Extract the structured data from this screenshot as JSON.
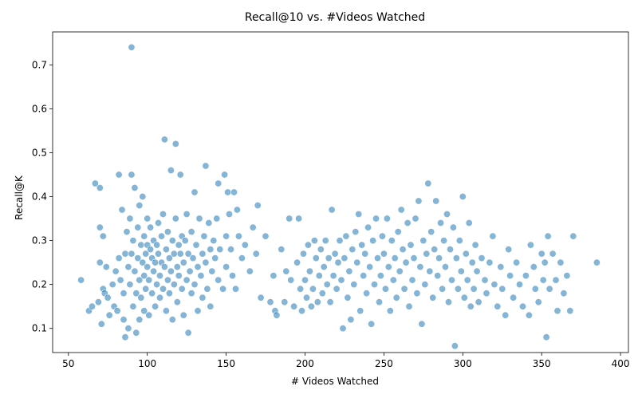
{
  "chart_data": {
    "type": "scatter",
    "title": "Recall@10 vs. #Videos Watched",
    "xlabel": "# Videos Watched",
    "ylabel": "Recall@K",
    "xlim": [
      40,
      405
    ],
    "ylim": [
      0.045,
      0.775
    ],
    "x_ticks": [
      50,
      100,
      150,
      200,
      250,
      300,
      350,
      400
    ],
    "y_ticks": [
      0.1,
      0.2,
      0.3,
      0.4,
      0.5,
      0.6,
      0.7
    ],
    "grid": false,
    "marker_color": "#1f77b4",
    "series": [
      {
        "points": [
          [
            58,
            0.21
          ],
          [
            63,
            0.14
          ],
          [
            65,
            0.15
          ],
          [
            67,
            0.43
          ],
          [
            69,
            0.16
          ],
          [
            70,
            0.33
          ],
          [
            70,
            0.42
          ],
          [
            70,
            0.25
          ],
          [
            71,
            0.11
          ],
          [
            72,
            0.19
          ],
          [
            72,
            0.31
          ],
          [
            73,
            0.18
          ],
          [
            74,
            0.24
          ],
          [
            75,
            0.17
          ],
          [
            76,
            0.13
          ],
          [
            78,
            0.2
          ],
          [
            79,
            0.15
          ],
          [
            80,
            0.23
          ],
          [
            81,
            0.14
          ],
          [
            82,
            0.26
          ],
          [
            82,
            0.45
          ],
          [
            83,
            0.21
          ],
          [
            84,
            0.37
          ],
          [
            85,
            0.18
          ],
          [
            85,
            0.12
          ],
          [
            86,
            0.27
          ],
          [
            86,
            0.08
          ],
          [
            87,
            0.32
          ],
          [
            88,
            0.24
          ],
          [
            88,
            0.1
          ],
          [
            89,
            0.35
          ],
          [
            89,
            0.2
          ],
          [
            90,
            0.45
          ],
          [
            90,
            0.74
          ],
          [
            90,
            0.27
          ],
          [
            91,
            0.15
          ],
          [
            91,
            0.3
          ],
          [
            92,
            0.42
          ],
          [
            92,
            0.23
          ],
          [
            93,
            0.09
          ],
          [
            93,
            0.18
          ],
          [
            94,
            0.33
          ],
          [
            94,
            0.26
          ],
          [
            95,
            0.38
          ],
          [
            95,
            0.21
          ],
          [
            95,
            0.12
          ],
          [
            96,
            0.29
          ],
          [
            96,
            0.17
          ],
          [
            97,
            0.25
          ],
          [
            97,
            0.4
          ],
          [
            98,
            0.22
          ],
          [
            98,
            0.31
          ],
          [
            98,
            0.14
          ],
          [
            99,
            0.27
          ],
          [
            99,
            0.19
          ],
          [
            100,
            0.24
          ],
          [
            100,
            0.35
          ],
          [
            100,
            0.29
          ],
          [
            101,
            0.13
          ],
          [
            101,
            0.21
          ],
          [
            102,
            0.28
          ],
          [
            102,
            0.33
          ],
          [
            103,
            0.26
          ],
          [
            103,
            0.18
          ],
          [
            104,
            0.3
          ],
          [
            104,
            0.23
          ],
          [
            105,
            0.25
          ],
          [
            105,
            0.15
          ],
          [
            106,
            0.29
          ],
          [
            106,
            0.2
          ],
          [
            107,
            0.27
          ],
          [
            107,
            0.34
          ],
          [
            108,
            0.22
          ],
          [
            108,
            0.17
          ],
          [
            109,
            0.31
          ],
          [
            109,
            0.25
          ],
          [
            110,
            0.19
          ],
          [
            110,
            0.36
          ],
          [
            111,
            0.24
          ],
          [
            111,
            0.53
          ],
          [
            112,
            0.28
          ],
          [
            112,
            0.14
          ],
          [
            113,
            0.21
          ],
          [
            113,
            0.32
          ],
          [
            114,
            0.26
          ],
          [
            114,
            0.18
          ],
          [
            115,
            0.46
          ],
          [
            115,
            0.23
          ],
          [
            116,
            0.3
          ],
          [
            116,
            0.12
          ],
          [
            117,
            0.27
          ],
          [
            117,
            0.2
          ],
          [
            118,
            0.52
          ],
          [
            118,
            0.35
          ],
          [
            119,
            0.24
          ],
          [
            119,
            0.16
          ],
          [
            120,
            0.29
          ],
          [
            120,
            0.22
          ],
          [
            121,
            0.45
          ],
          [
            121,
            0.27
          ],
          [
            122,
            0.19
          ],
          [
            122,
            0.31
          ],
          [
            123,
            0.25
          ],
          [
            123,
            0.13
          ],
          [
            124,
            0.3
          ],
          [
            125,
            0.21
          ],
          [
            125,
            0.36
          ],
          [
            126,
            0.09
          ],
          [
            126,
            0.27
          ],
          [
            127,
            0.23
          ],
          [
            128,
            0.32
          ],
          [
            128,
            0.18
          ],
          [
            129,
            0.26
          ],
          [
            130,
            0.41
          ],
          [
            130,
            0.2
          ],
          [
            131,
            0.29
          ],
          [
            132,
            0.24
          ],
          [
            132,
            0.14
          ],
          [
            133,
            0.35
          ],
          [
            134,
            0.22
          ],
          [
            135,
            0.27
          ],
          [
            135,
            0.17
          ],
          [
            136,
            0.31
          ],
          [
            137,
            0.47
          ],
          [
            137,
            0.25
          ],
          [
            138,
            0.19
          ],
          [
            139,
            0.34
          ],
          [
            140,
            0.28
          ],
          [
            140,
            0.15
          ],
          [
            141,
            0.23
          ],
          [
            142,
            0.3
          ],
          [
            143,
            0.26
          ],
          [
            144,
            0.35
          ],
          [
            145,
            0.43
          ],
          [
            145,
            0.21
          ],
          [
            146,
            0.28
          ],
          [
            148,
            0.19
          ],
          [
            149,
            0.45
          ],
          [
            150,
            0.31
          ],
          [
            150,
            0.24
          ],
          [
            151,
            0.41
          ],
          [
            152,
            0.36
          ],
          [
            153,
            0.28
          ],
          [
            154,
            0.22
          ],
          [
            155,
            0.41
          ],
          [
            156,
            0.19
          ],
          [
            157,
            0.37
          ],
          [
            158,
            0.31
          ],
          [
            160,
            0.26
          ],
          [
            162,
            0.29
          ],
          [
            165,
            0.23
          ],
          [
            167,
            0.33
          ],
          [
            169,
            0.27
          ],
          [
            170,
            0.38
          ],
          [
            172,
            0.17
          ],
          [
            175,
            0.31
          ],
          [
            178,
            0.16
          ],
          [
            180,
            0.22
          ],
          [
            181,
            0.14
          ],
          [
            182,
            0.13
          ],
          [
            185,
            0.28
          ],
          [
            187,
            0.16
          ],
          [
            188,
            0.23
          ],
          [
            190,
            0.35
          ],
          [
            191,
            0.21
          ],
          [
            193,
            0.15
          ],
          [
            195,
            0.25
          ],
          [
            196,
            0.35
          ],
          [
            197,
            0.19
          ],
          [
            198,
            0.14
          ],
          [
            199,
            0.27
          ],
          [
            200,
            0.21
          ],
          [
            201,
            0.17
          ],
          [
            202,
            0.29
          ],
          [
            203,
            0.23
          ],
          [
            204,
            0.15
          ],
          [
            205,
            0.19
          ],
          [
            206,
            0.3
          ],
          [
            207,
            0.26
          ],
          [
            208,
            0.16
          ],
          [
            209,
            0.22
          ],
          [
            210,
            0.28
          ],
          [
            211,
            0.18
          ],
          [
            212,
            0.24
          ],
          [
            213,
            0.3
          ],
          [
            214,
            0.2
          ],
          [
            215,
            0.26
          ],
          [
            216,
            0.16
          ],
          [
            217,
            0.37
          ],
          [
            218,
            0.22
          ],
          [
            219,
            0.27
          ],
          [
            220,
            0.19
          ],
          [
            221,
            0.25
          ],
          [
            222,
            0.3
          ],
          [
            223,
            0.21
          ],
          [
            224,
            0.1
          ],
          [
            225,
            0.26
          ],
          [
            226,
            0.31
          ],
          [
            227,
            0.17
          ],
          [
            228,
            0.23
          ],
          [
            229,
            0.12
          ],
          [
            230,
            0.28
          ],
          [
            231,
            0.2
          ],
          [
            232,
            0.32
          ],
          [
            233,
            0.25
          ],
          [
            234,
            0.36
          ],
          [
            235,
            0.14
          ],
          [
            236,
            0.29
          ],
          [
            237,
            0.22
          ],
          [
            238,
            0.27
          ],
          [
            239,
            0.18
          ],
          [
            240,
            0.33
          ],
          [
            241,
            0.24
          ],
          [
            242,
            0.11
          ],
          [
            243,
            0.3
          ],
          [
            244,
            0.2
          ],
          [
            245,
            0.35
          ],
          [
            246,
            0.26
          ],
          [
            247,
            0.16
          ],
          [
            248,
            0.22
          ],
          [
            249,
            0.31
          ],
          [
            250,
            0.27
          ],
          [
            251,
            0.19
          ],
          [
            252,
            0.35
          ],
          [
            253,
            0.24
          ],
          [
            254,
            0.14
          ],
          [
            255,
            0.3
          ],
          [
            256,
            0.21
          ],
          [
            257,
            0.26
          ],
          [
            258,
            0.17
          ],
          [
            259,
            0.32
          ],
          [
            260,
            0.23
          ],
          [
            261,
            0.37
          ],
          [
            262,
            0.28
          ],
          [
            263,
            0.19
          ],
          [
            264,
            0.25
          ],
          [
            265,
            0.34
          ],
          [
            266,
            0.15
          ],
          [
            267,
            0.29
          ],
          [
            268,
            0.21
          ],
          [
            269,
            0.26
          ],
          [
            270,
            0.35
          ],
          [
            271,
            0.18
          ],
          [
            272,
            0.39
          ],
          [
            273,
            0.24
          ],
          [
            274,
            0.11
          ],
          [
            275,
            0.3
          ],
          [
            276,
            0.2
          ],
          [
            277,
            0.27
          ],
          [
            278,
            0.43
          ],
          [
            279,
            0.23
          ],
          [
            280,
            0.32
          ],
          [
            281,
            0.17
          ],
          [
            282,
            0.28
          ],
          [
            283,
            0.39
          ],
          [
            284,
            0.22
          ],
          [
            285,
            0.26
          ],
          [
            286,
            0.34
          ],
          [
            287,
            0.19
          ],
          [
            288,
            0.3
          ],
          [
            289,
            0.24
          ],
          [
            290,
            0.36
          ],
          [
            291,
            0.16
          ],
          [
            292,
            0.28
          ],
          [
            293,
            0.21
          ],
          [
            294,
            0.33
          ],
          [
            295,
            0.06
          ],
          [
            296,
            0.26
          ],
          [
            297,
            0.19
          ],
          [
            298,
            0.3
          ],
          [
            299,
            0.23
          ],
          [
            300,
            0.4
          ],
          [
            301,
            0.17
          ],
          [
            302,
            0.27
          ],
          [
            303,
            0.21
          ],
          [
            304,
            0.34
          ],
          [
            305,
            0.15
          ],
          [
            306,
            0.25
          ],
          [
            307,
            0.19
          ],
          [
            308,
            0.29
          ],
          [
            309,
            0.23
          ],
          [
            310,
            0.16
          ],
          [
            312,
            0.26
          ],
          [
            314,
            0.21
          ],
          [
            315,
            0.18
          ],
          [
            317,
            0.25
          ],
          [
            319,
            0.31
          ],
          [
            320,
            0.2
          ],
          [
            322,
            0.15
          ],
          [
            324,
            0.24
          ],
          [
            325,
            0.19
          ],
          [
            327,
            0.13
          ],
          [
            329,
            0.28
          ],
          [
            330,
            0.22
          ],
          [
            332,
            0.17
          ],
          [
            334,
            0.25
          ],
          [
            336,
            0.2
          ],
          [
            338,
            0.15
          ],
          [
            340,
            0.22
          ],
          [
            342,
            0.13
          ],
          [
            343,
            0.29
          ],
          [
            345,
            0.24
          ],
          [
            346,
            0.19
          ],
          [
            348,
            0.16
          ],
          [
            350,
            0.27
          ],
          [
            351,
            0.21
          ],
          [
            352,
            0.25
          ],
          [
            353,
            0.08
          ],
          [
            354,
            0.31
          ],
          [
            355,
            0.19
          ],
          [
            357,
            0.27
          ],
          [
            359,
            0.21
          ],
          [
            360,
            0.14
          ],
          [
            362,
            0.25
          ],
          [
            364,
            0.18
          ],
          [
            366,
            0.22
          ],
          [
            368,
            0.14
          ],
          [
            370,
            0.31
          ],
          [
            385,
            0.25
          ]
        ]
      }
    ]
  }
}
